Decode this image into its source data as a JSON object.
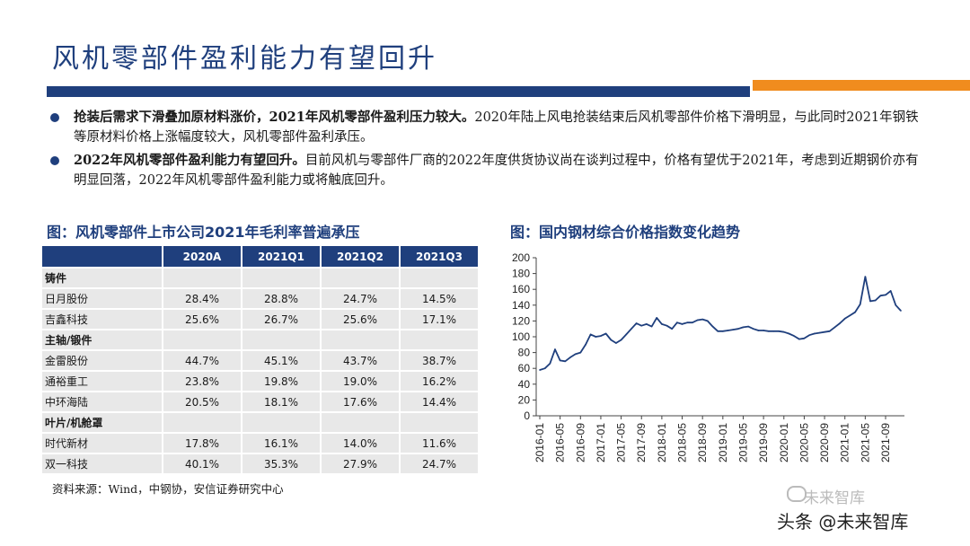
{
  "title": "风机零部件盈利能力有望回升",
  "bullets": [
    {
      "bold": "抢装后需求下滑叠加原材料涨价，2021年风机零部件盈利压力较大。",
      "text": "2020年陆上风电抢装结束后风机零部件价格下滑明显，与此同时2021年钢铁等原材料价格上涨幅度较大，风机零部件盈利承压。"
    },
    {
      "bold": "2022年风机零部件盈利能力有望回升。",
      "text": "目前风机与零部件厂商的2022年度供货协议尚在谈判过程中，价格有望优于2021年，考虑到近期钢价亦有明显回落，2022年风机零部件盈利能力或将触底回升。"
    }
  ],
  "table": {
    "title": "图：风机零部件上市公司2021年毛利率普遍承压",
    "headers": [
      "2020A",
      "2021Q1",
      "2021Q2",
      "2021Q3"
    ],
    "groups": [
      {
        "name": "铸件",
        "rows": [
          {
            "name": "日月股份",
            "values": [
              "28.4%",
              "28.8%",
              "24.7%",
              "14.5%"
            ]
          },
          {
            "name": "吉鑫科技",
            "values": [
              "25.6%",
              "26.7%",
              "25.6%",
              "17.1%"
            ]
          }
        ]
      },
      {
        "name": "主轴/锻件",
        "rows": [
          {
            "name": "金雷股份",
            "values": [
              "44.7%",
              "45.1%",
              "43.7%",
              "38.7%"
            ]
          },
          {
            "name": "通裕重工",
            "values": [
              "23.8%",
              "19.8%",
              "19.0%",
              "16.2%"
            ]
          },
          {
            "name": "中环海陆",
            "values": [
              "20.5%",
              "18.1%",
              "17.6%",
              "14.4%"
            ]
          }
        ]
      },
      {
        "name": "叶片/机舱罩",
        "rows": [
          {
            "name": "时代新材",
            "values": [
              "17.8%",
              "16.1%",
              "14.0%",
              "11.6%"
            ]
          },
          {
            "name": "双一科技",
            "values": [
              "40.1%",
              "35.3%",
              "27.9%",
              "24.7%"
            ]
          }
        ]
      }
    ]
  },
  "source": "资料来源：Wind，中钢协，安信证券研究中心",
  "chart_title": "图：国内钢材综合价格指数变化趋势",
  "chart_data": {
    "type": "line",
    "title": "图：国内钢材综合价格指数变化趋势",
    "xlabel": "",
    "ylabel": "",
    "ylim": [
      0,
      200
    ],
    "yticks": [
      0,
      20,
      40,
      60,
      80,
      100,
      120,
      140,
      160,
      180,
      200
    ],
    "xticks": [
      "2016-01",
      "2016-05",
      "2016-09",
      "2017-01",
      "2017-05",
      "2017-09",
      "2018-01",
      "2018-05",
      "2018-09",
      "2019-01",
      "2019-05",
      "2019-09",
      "2020-01",
      "2020-05",
      "2020-09",
      "2021-01",
      "2021-05",
      "2021-09"
    ],
    "grid": false,
    "color": "#1f3f7d",
    "series": [
      {
        "x": [
          "2016-01",
          "2016-02",
          "2016-03",
          "2016-04",
          "2016-05",
          "2016-06",
          "2016-07",
          "2016-08",
          "2016-09",
          "2016-10",
          "2016-11",
          "2016-12",
          "2017-01",
          "2017-02",
          "2017-03",
          "2017-04",
          "2017-05",
          "2017-06",
          "2017-07",
          "2017-08",
          "2017-09",
          "2017-10",
          "2017-11",
          "2017-12",
          "2018-01",
          "2018-02",
          "2018-03",
          "2018-04",
          "2018-05",
          "2018-06",
          "2018-07",
          "2018-08",
          "2018-09",
          "2018-10",
          "2018-11",
          "2018-12",
          "2019-01",
          "2019-02",
          "2019-03",
          "2019-04",
          "2019-05",
          "2019-06",
          "2019-07",
          "2019-08",
          "2019-09",
          "2019-10",
          "2019-11",
          "2019-12",
          "2020-01",
          "2020-02",
          "2020-03",
          "2020-04",
          "2020-05",
          "2020-06",
          "2020-07",
          "2020-08",
          "2020-09",
          "2020-10",
          "2020-11",
          "2020-12",
          "2021-01",
          "2021-02",
          "2021-03",
          "2021-04",
          "2021-05",
          "2021-06",
          "2021-07",
          "2021-08",
          "2021-09",
          "2021-10",
          "2021-11",
          "2021-12"
        ],
        "values": [
          58,
          60,
          66,
          84,
          70,
          69,
          74,
          78,
          80,
          90,
          103,
          100,
          101,
          104,
          96,
          92,
          96,
          103,
          110,
          117,
          114,
          116,
          113,
          124,
          116,
          114,
          110,
          118,
          116,
          118,
          118,
          121,
          122,
          120,
          113,
          107,
          107,
          108,
          109,
          110,
          112,
          113,
          110,
          108,
          108,
          107,
          107,
          107,
          106,
          104,
          101,
          97,
          98,
          102,
          104,
          105,
          106,
          107,
          112,
          117,
          123,
          127,
          131,
          141,
          176,
          145,
          146,
          152,
          153,
          158,
          140,
          133
        ]
      }
    ]
  },
  "watermark": {
    "text": "头条 @未来智库",
    "faint": "未来智库"
  }
}
